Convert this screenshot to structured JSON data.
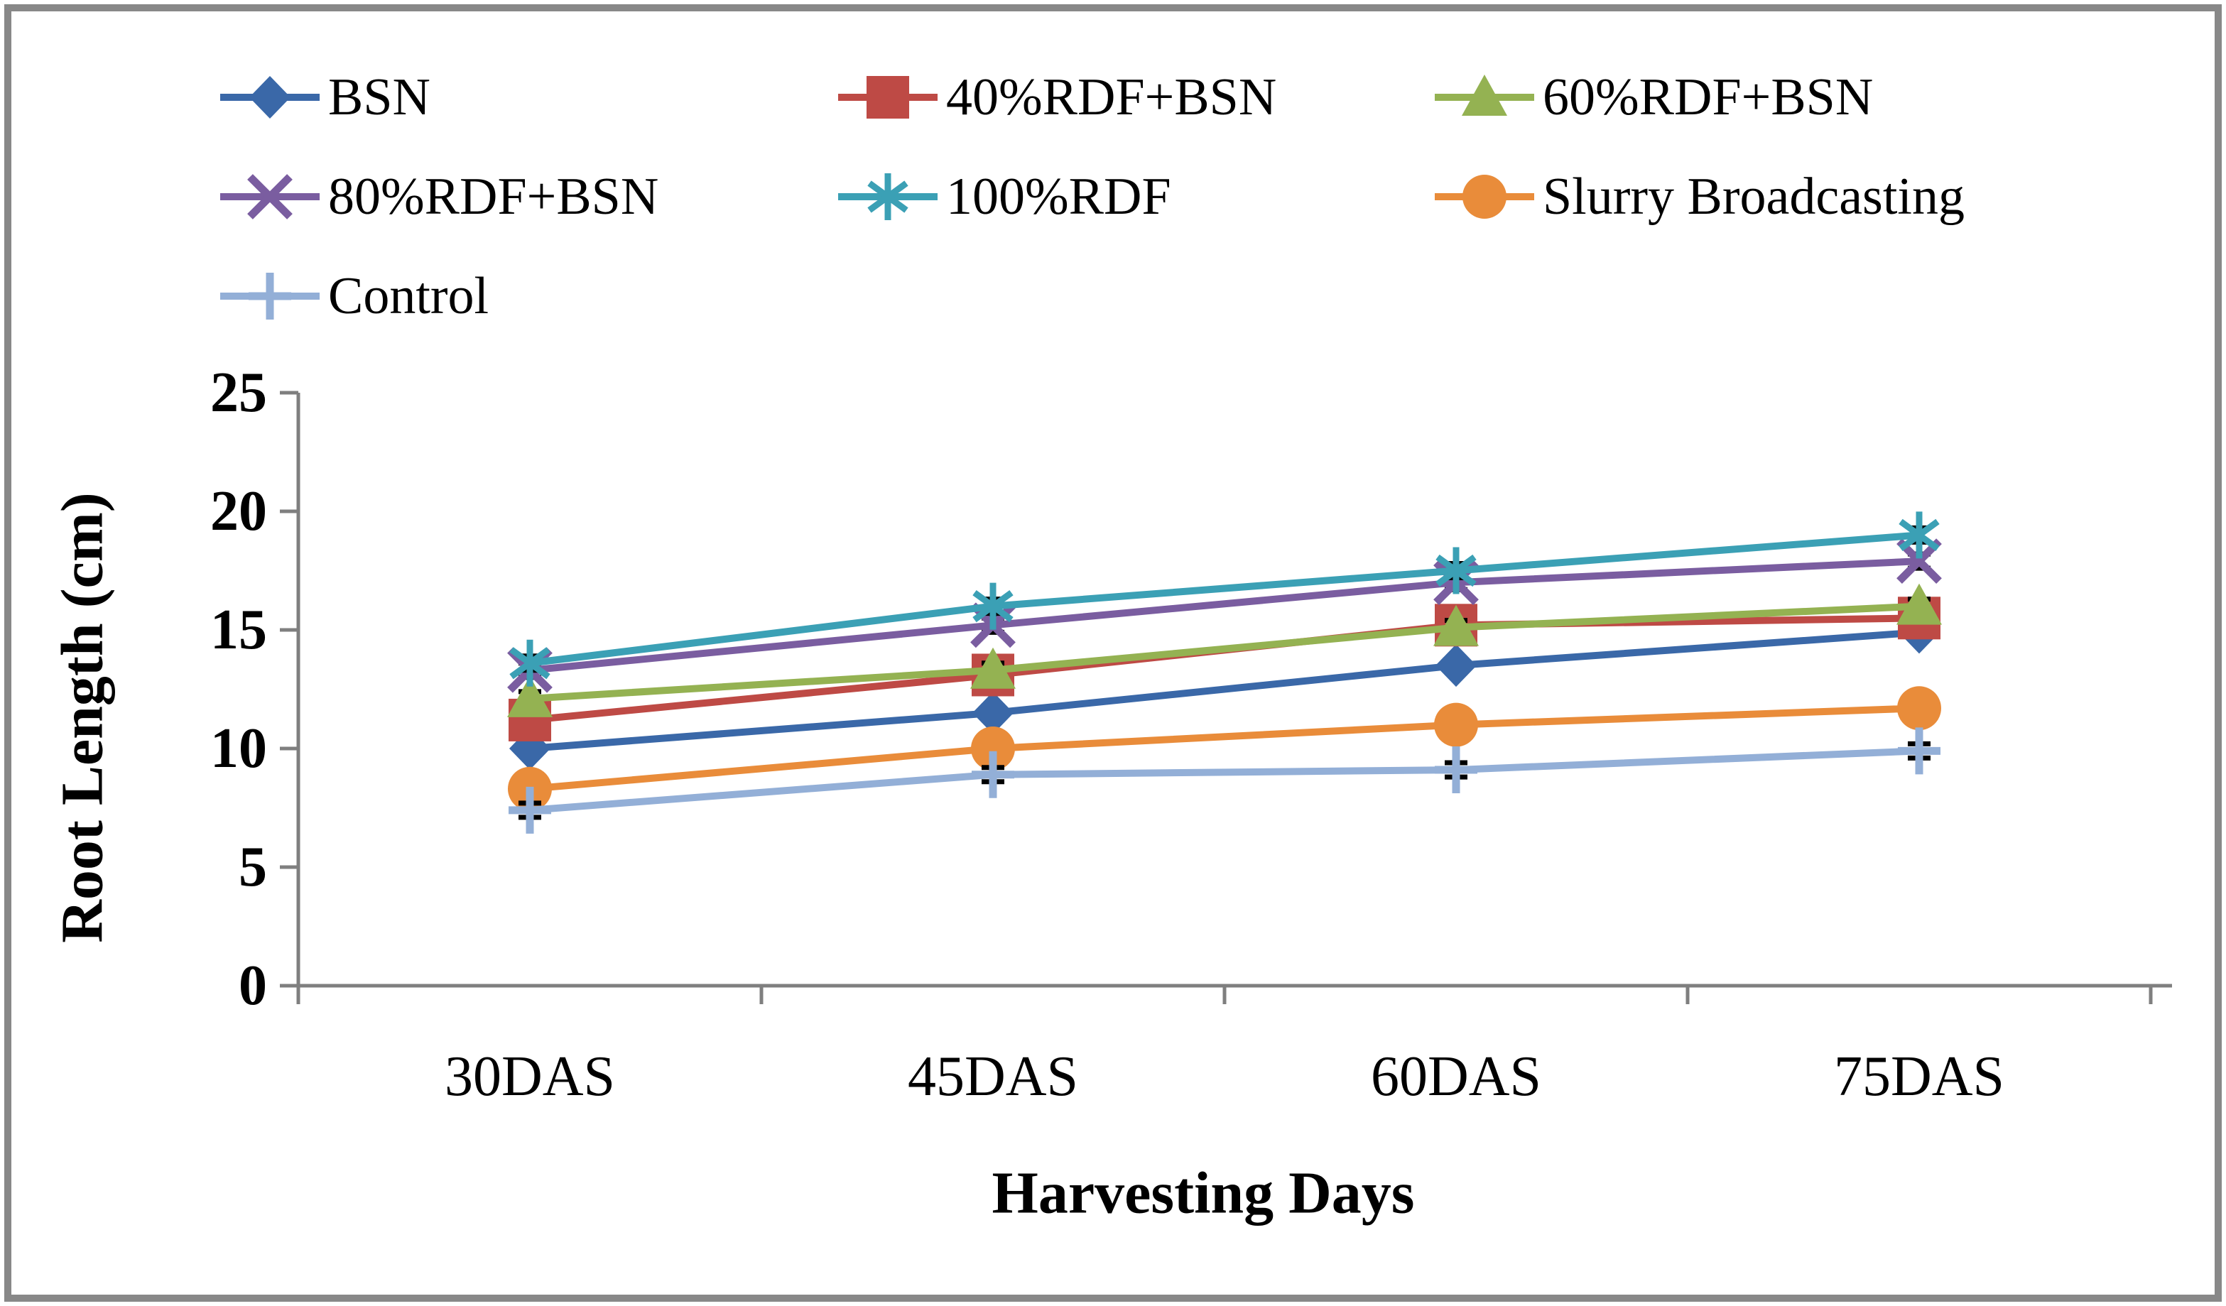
{
  "figure": {
    "border_color": "#888888",
    "background": "#ffffff",
    "axis_color": "#7f7f7f",
    "error_bar_color": "#000000"
  },
  "chart_data": {
    "type": "line",
    "title": "",
    "xlabel": "Harvesting Days",
    "ylabel": "Root Length (cm)",
    "categories": [
      "30DAS",
      "45DAS",
      "60DAS",
      "75DAS"
    ],
    "ylim": [
      0,
      25
    ],
    "yticks": [
      0,
      5,
      10,
      15,
      20,
      25
    ],
    "grid": false,
    "legend_position": "top-left-3-columns",
    "error_bar": 0.3,
    "series": [
      {
        "name": "BSN",
        "color": "#3A68A8",
        "marker": "diamond",
        "values": [
          10.0,
          11.5,
          13.5,
          14.9
        ]
      },
      {
        "name": "40%RDF+BSN",
        "color": "#BE4A45",
        "marker": "square",
        "values": [
          11.2,
          13.1,
          15.2,
          15.5
        ]
      },
      {
        "name": "60%RDF+BSN",
        "color": "#94B252",
        "marker": "triangle",
        "values": [
          12.1,
          13.3,
          15.1,
          16.0
        ]
      },
      {
        "name": "80%RDF+BSN",
        "color": "#7A5DA0",
        "marker": "x",
        "values": [
          13.3,
          15.2,
          17.0,
          17.9
        ]
      },
      {
        "name": "100%RDF",
        "color": "#3BA0B5",
        "marker": "asterisk",
        "values": [
          13.6,
          16.0,
          17.5,
          19.0
        ]
      },
      {
        "name": "Slurry Broadcasting",
        "color": "#E98C3A",
        "marker": "circle",
        "values": [
          8.3,
          10.0,
          11.0,
          11.7
        ]
      },
      {
        "name": "Control",
        "color": "#93AFD7",
        "marker": "plus",
        "values": [
          7.4,
          8.9,
          9.1,
          9.9
        ]
      }
    ]
  }
}
